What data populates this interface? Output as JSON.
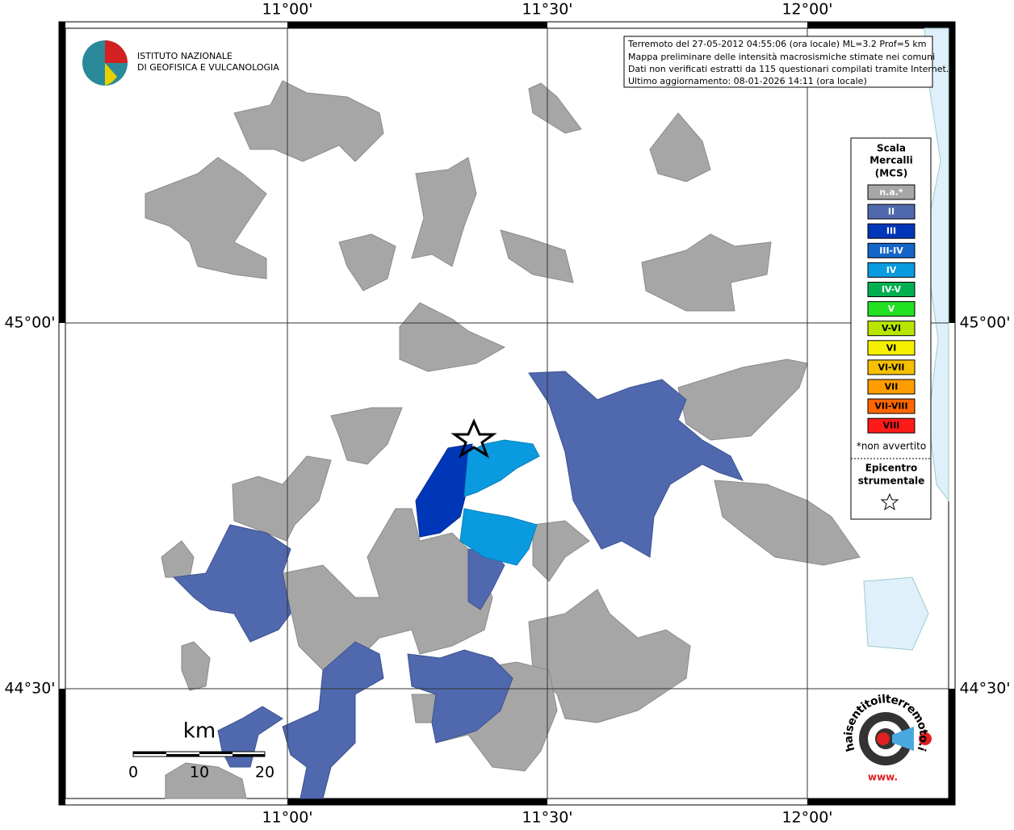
{
  "header": {
    "logo_lines": [
      "ISTITUTO NAZIONALE",
      "DI GEOFISICA E VULCANOLOGIA"
    ]
  },
  "info_box": {
    "lines": [
      "Terremoto del 27-05-2012 04:55:06 (ora locale) ML=3.2 Prof=5 km",
      "Mappa preliminare delle intensità macrosismiche stimate nei comuni",
      "Dati non verificati estratti da 115 questionari compilati tramite Internet.",
      "Ultimo aggiornamento: 08-01-2026 14:11 (ora locale)"
    ]
  },
  "grid": {
    "lon_labels": [
      "11°00'",
      "11°30'",
      "12°00'"
    ],
    "lat_labels": [
      "45°00'",
      "44°30'"
    ]
  },
  "legend": {
    "title_lines": [
      "Scala",
      "Mercalli",
      "(MCS)"
    ],
    "items": [
      {
        "label": "n.a.*",
        "color": "#a6a6a6"
      },
      {
        "label": "II",
        "color": "#4f68ae"
      },
      {
        "label": "III",
        "color": "#0037b8"
      },
      {
        "label": "III-IV",
        "color": "#1565c8"
      },
      {
        "label": "IV",
        "color": "#0a9ae0"
      },
      {
        "label": "IV-V",
        "color": "#00b050"
      },
      {
        "label": "V",
        "color": "#22e022"
      },
      {
        "label": "V-VI",
        "color": "#b8e600"
      },
      {
        "label": "VI",
        "color": "#f5f000"
      },
      {
        "label": "VI-VII",
        "color": "#f5c000"
      },
      {
        "label": "VII",
        "color": "#ff9c00"
      },
      {
        "label": "VII-VIII",
        "color": "#ff6600"
      },
      {
        "label": "VIII",
        "color": "#ff1a1a"
      }
    ],
    "note": "*non avvertito",
    "epicenter_lines": [
      "Epicentro",
      "strumentale"
    ]
  },
  "scale_bar": {
    "unit": "km",
    "ticks": [
      "0",
      "10",
      "20"
    ]
  },
  "badge": {
    "prefix": "www.",
    "text": "haisentitoilterremoto.it"
  }
}
